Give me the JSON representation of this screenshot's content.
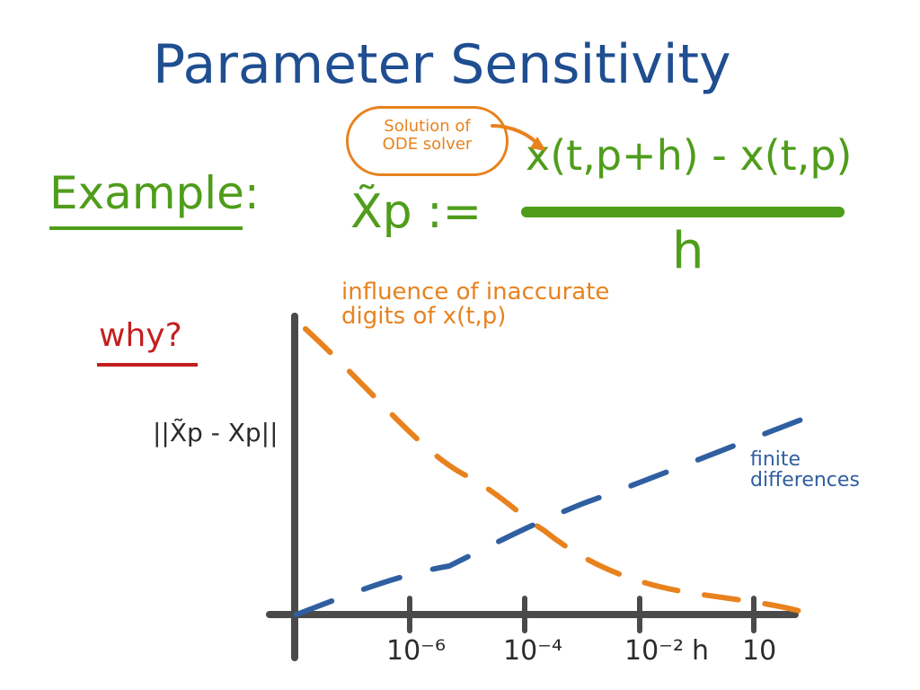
{
  "title": "Parameter Sensitivity",
  "example": {
    "label": "Example:",
    "annotation": "Solution of ODE solver",
    "lhs": "X̃p :=",
    "numerator": "x(t,p+h) - x(t,p)",
    "denominator": "h"
  },
  "why": {
    "label": "why?"
  },
  "plot": {
    "y_axis_label": "||X̃p - Xp||",
    "curve_labels": {
      "orange": "influence of inaccurate digits of x(t,p)",
      "blue": "finite differences"
    },
    "ticks": [
      "10⁻⁶",
      "10⁻⁴",
      "10⁻²",
      "10"
    ],
    "x_axis_label": "h"
  },
  "colors": {
    "title": "#1f4e91",
    "example": "#4f9d1b",
    "why": "#c41f1f",
    "annotation": "#e8821e",
    "axis": "#4a4a4a",
    "blue_curve": "#2f5fa0",
    "orange_curve": "#e8821e"
  }
}
